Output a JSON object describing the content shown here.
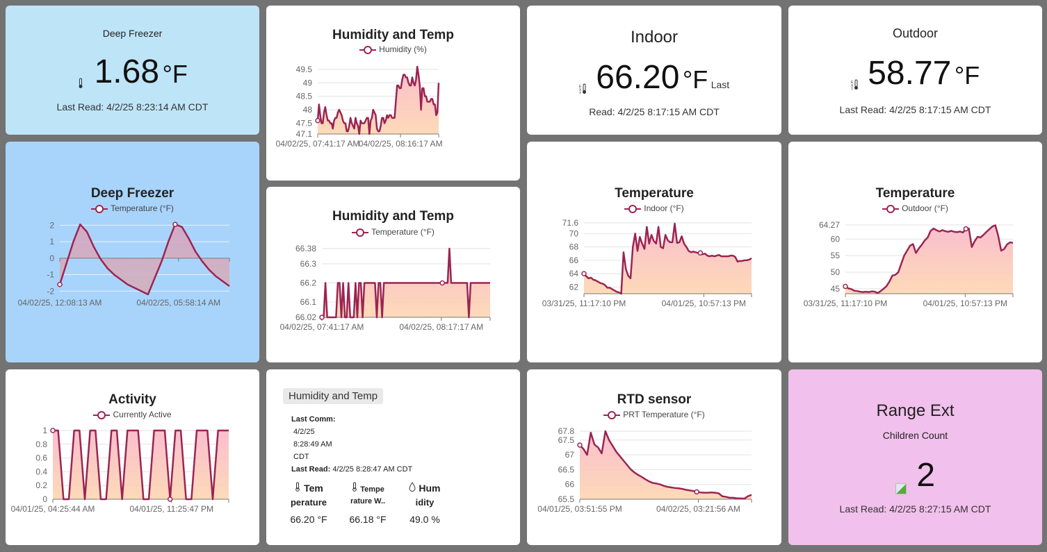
{
  "colors": {
    "background": "#737373",
    "tile": "#ffffff",
    "freezer_value_tile": "#bee4f7",
    "freezer_chart_tile": "#a8d4fb",
    "range_ext_tile": "#f1c0ec",
    "series_line": "#9b2452",
    "fill_top": "#f9b7c8",
    "fill_bottom": "#fdd6b0",
    "grid": "#e2e2e2"
  },
  "tiles": {
    "deep_freezer_value": {
      "title": "Deep Freezer",
      "icon": "thermometer-icon",
      "value": "1.68",
      "unit": "°F",
      "last_read": "Last Read: 4/2/25 8:23:14 AM CDT"
    },
    "indoor_value": {
      "title": "Indoor",
      "icon": "ext-thermometer-icon",
      "value": "66.20",
      "unit": "°F",
      "last_read_prefix": "Last",
      "last_read": "Read: 4/2/25 8:17:15 AM CDT"
    },
    "outdoor_value": {
      "title": "Outdoor",
      "icon": "ext-thermometer-icon",
      "value": "58.77",
      "unit": "°F",
      "last_read": "Last Read: 4/2/25 8:17:15 AM CDT"
    },
    "humidity_temp_info": {
      "button_label": "Humidity and Temp",
      "last_comm_label": "Last Comm:",
      "last_comm_lines": [
        "4/2/25",
        "8:28:49 AM",
        "CDT"
      ],
      "last_read_label": "Last Read:",
      "last_read_value": "4/2/25 8:28:47 AM CDT",
      "columns": [
        {
          "icon": "thermometer-icon",
          "h1": "Tem",
          "h2": "perature",
          "value": "66.20 °F"
        },
        {
          "icon": "thermometer-icon",
          "h1": "Tempe",
          "h2": "rature W..",
          "value": "66.18 °F"
        },
        {
          "icon": "water-drop-icon",
          "h1": "Hum",
          "h2": "idity",
          "value": "49.0 %"
        }
      ]
    },
    "range_ext": {
      "title": "Range Ext",
      "subtitle": "Children Count",
      "icon": "broken-image-icon",
      "value": "2",
      "last_read": "Last Read: 4/2/25 8:27:15 AM CDT"
    }
  },
  "chart_data": [
    {
      "id": "humidity",
      "type": "area",
      "title": "Humidity and Temp",
      "legend": [
        "Humidity (%)"
      ],
      "legend_position": "top",
      "xlabel": "",
      "ylabel": "",
      "ylim": [
        47.1,
        49.6
      ],
      "yticks": [
        47.1,
        47.5,
        48,
        48.5,
        49,
        49.5
      ],
      "xtick_labels": [
        "04/02/25, 07:41:17 AM",
        "04/02/25, 08:16:17 AM"
      ],
      "xtick_positions": [
        0,
        0.685
      ],
      "grid": true,
      "series": [
        {
          "name": "Humidity (%)",
          "values": [
            47.6,
            48.2,
            47.8,
            47.5,
            47.5,
            47.9,
            48.1,
            47.8,
            47.6,
            47.6,
            47.5,
            47.5,
            47.3,
            47.6,
            47.7,
            47.7,
            47.9,
            48.0,
            47.9,
            47.8,
            47.6,
            47.5,
            47.5,
            47.2,
            47.2,
            47.4,
            47.7,
            47.5,
            47.4,
            47.3,
            47.7,
            47.5,
            47.4,
            47.1,
            47.6,
            47.5,
            47.5,
            47.5,
            47.6,
            47.7,
            47.7,
            47.1,
            47.6,
            47.7,
            48.0,
            47.9,
            47.8,
            47.3,
            47.2,
            47.2,
            47.4,
            47.7,
            47.7,
            47.5,
            47.6,
            47.8,
            47.7,
            47.8,
            47.8,
            47.7,
            47.7,
            47.7,
            48.3,
            48.9,
            48.9,
            48.8,
            48.8,
            49.1,
            49.3,
            49.3,
            49.2,
            49.2,
            49.0,
            48.9,
            48.9,
            49.2,
            49.0,
            48.9,
            49.1,
            49.6,
            49.3,
            48.9,
            48.0,
            48.8,
            48.8,
            48.5,
            48.5,
            48.3,
            48.3,
            48.3,
            48.4,
            48.4,
            48.2,
            48.2,
            47.8,
            47.9,
            49.0
          ]
        }
      ],
      "markers": [
        {
          "index": 0
        }
      ]
    },
    {
      "id": "deep_freezer",
      "type": "area",
      "title": "Deep Freezer",
      "legend": [
        "Temperature (°F)"
      ],
      "legend_position": "top",
      "xlabel": "",
      "ylabel": "",
      "ylim": [
        -2.2,
        2.1
      ],
      "yticks": [
        -2,
        -1,
        0,
        1,
        2
      ],
      "xtick_labels": [
        "04/02/25, 12:08:13 AM",
        "04/02/25, 05:58:14 AM"
      ],
      "xtick_positions": [
        0,
        0.7
      ],
      "grid": true,
      "series": [
        {
          "name": "Temperature (°F)",
          "values": [
            -1.6,
            -0.3,
            1.0,
            2.05,
            1.6,
            0.7,
            -0.05,
            -0.6,
            -1.0,
            -1.3,
            -1.6,
            -1.8,
            -2.0,
            -2.2,
            -1.2,
            -0.2,
            1.0,
            2.05,
            1.9,
            1.2,
            0.4,
            -0.2,
            -0.7,
            -1.1,
            -1.4,
            -1.7
          ]
        }
      ],
      "markers": [
        {
          "index": 0
        },
        {
          "index": 17
        }
      ]
    },
    {
      "id": "hum_temp_temperature",
      "type": "area",
      "title": "Humidity and Temp",
      "legend": [
        "Temperature (°F)"
      ],
      "legend_position": "top",
      "xlabel": "",
      "ylabel": "",
      "ylim": [
        66.02,
        66.38
      ],
      "yticks": [
        66.02,
        66.1,
        66.2,
        66.3,
        66.38
      ],
      "xtick_labels": [
        "04/02/25, 07:41:17 AM",
        "04/02/25, 08:17:17 AM"
      ],
      "xtick_positions": [
        0,
        0.71
      ],
      "grid": true,
      "series": [
        {
          "name": "Temperature (°F)",
          "values": [
            66.02,
            66.02,
            66.2,
            66.02,
            66.02,
            66.02,
            66.02,
            66.02,
            66.02,
            66.2,
            66.2,
            66.02,
            66.2,
            66.02,
            66.02,
            66.2,
            66.02,
            66.02,
            66.02,
            66.2,
            66.02,
            66.2,
            66.2,
            66.02,
            66.2,
            66.2,
            66.2,
            66.2,
            66.2,
            66.2,
            66.2,
            66.02,
            66.2,
            66.2,
            66.02,
            66.2,
            66.2,
            66.2,
            66.2,
            66.2,
            66.2,
            66.2,
            66.2,
            66.2,
            66.2,
            66.2,
            66.2,
            66.2,
            66.2,
            66.2,
            66.2,
            66.2,
            66.2,
            66.2,
            66.2,
            66.2,
            66.2,
            66.2,
            66.2,
            66.2,
            66.2,
            66.2,
            66.2,
            66.2,
            66.2,
            66.2,
            66.2,
            66.2,
            66.2,
            66.2,
            66.2,
            66.2,
            66.38,
            66.2,
            66.2,
            66.2,
            66.2,
            66.2,
            66.2,
            66.2,
            66.2,
            66.2,
            66.2,
            66.02,
            66.2,
            66.2,
            66.2,
            66.2,
            66.2,
            66.2,
            66.2,
            66.2,
            66.2,
            66.2,
            66.2,
            66.2
          ]
        }
      ],
      "markers": [
        {
          "index": 0
        },
        {
          "index": 68
        }
      ]
    },
    {
      "id": "indoor_temperature",
      "type": "area",
      "title": "Temperature",
      "legend": [
        "Indoor (°F)"
      ],
      "legend_position": "top",
      "xlabel": "",
      "ylabel": "",
      "ylim": [
        61,
        71.6
      ],
      "yticks": [
        62,
        64,
        66,
        68,
        70,
        71.6
      ],
      "xtick_labels": [
        "03/31/25, 11:17:10 PM",
        "04/01/25, 10:57:13 PM"
      ],
      "xtick_positions": [
        0,
        0.715
      ],
      "grid": true,
      "series": [
        {
          "name": "Indoor (°F)",
          "values": [
            64.0,
            63.6,
            63.3,
            63.4,
            63.1,
            63.0,
            62.8,
            62.6,
            62.5,
            62.3,
            61.9,
            61.9,
            61.7,
            61.5,
            61.3,
            61.2,
            61.0,
            67.2,
            64.7,
            63.7,
            63.3,
            68.0,
            70.0,
            67.4,
            69.5,
            68.5,
            67.7,
            71.0,
            68.5,
            69.8,
            68.9,
            68.5,
            71.0,
            68.0,
            67.8,
            69.8,
            69.0,
            68.7,
            68.7,
            71.5,
            68.6,
            68.7,
            69.6,
            68.5,
            68.0,
            67.4,
            67.2,
            67.3,
            67.2,
            67.1,
            67.1,
            66.9,
            67.0,
            66.7,
            66.6,
            66.7,
            66.6,
            66.7,
            66.8,
            66.6,
            66.6,
            66.6,
            66.6,
            66.7,
            66.7,
            66.5,
            65.8,
            65.9,
            65.9,
            66.0,
            66.0,
            66.1,
            66.3
          ]
        }
      ],
      "markers": [
        {
          "index": 0
        },
        {
          "index": 50
        }
      ]
    },
    {
      "id": "outdoor_temperature",
      "type": "area",
      "title": "Temperature",
      "legend": [
        "Outdoor (°F)"
      ],
      "legend_position": "top",
      "xlabel": "",
      "ylabel": "",
      "ylim": [
        43.5,
        64.27
      ],
      "yticks": [
        45,
        50,
        55,
        60,
        64.27
      ],
      "xtick_labels": [
        "03/31/25, 11:17:10 PM",
        "04/01/25, 10:57:13 PM"
      ],
      "xtick_positions": [
        0,
        0.715
      ],
      "grid": true,
      "series": [
        {
          "name": "Outdoor (°F)",
          "values": [
            45.7,
            45.1,
            44.9,
            44.4,
            44.3,
            44.1,
            44.0,
            44.1,
            44.0,
            44.2,
            44.1,
            43.7,
            44.3,
            45.0,
            45.8,
            47.2,
            49.0,
            49.2,
            50.0,
            52.5,
            55.0,
            56.5,
            58.0,
            58.5,
            55.8,
            57.2,
            58.3,
            59.6,
            60.5,
            62.5,
            63.2,
            62.7,
            62.3,
            62.7,
            62.4,
            62.2,
            62.5,
            62.2,
            62.1,
            62.3,
            62.0,
            63.1,
            63.2,
            57.6,
            59.4,
            60.7,
            60.5,
            61.3,
            62.2,
            63.0,
            63.8,
            64.2,
            61.0,
            56.5,
            57.0,
            58.4,
            59.0,
            58.9
          ]
        }
      ],
      "markers": [
        {
          "index": 0
        },
        {
          "index": 41
        }
      ]
    },
    {
      "id": "activity",
      "type": "area",
      "title": "Activity",
      "legend": [
        "Currently Active"
      ],
      "legend_position": "top",
      "xlabel": "",
      "ylabel": "",
      "ylim": [
        0,
        1
      ],
      "yticks": [
        0,
        0.2,
        0.4,
        0.6,
        0.8,
        1
      ],
      "xtick_labels": [
        "04/01/25, 04:25:44 AM",
        "04/01/25, 11:25:47 PM"
      ],
      "xtick_positions": [
        0,
        0.675
      ],
      "grid": true,
      "series": [
        {
          "name": "Currently Active",
          "values": [
            1,
            1,
            0,
            0,
            1,
            1,
            0,
            1,
            1,
            0,
            0,
            1,
            1,
            0,
            1,
            1,
            1,
            0,
            0,
            1,
            1,
            1,
            0,
            1,
            1,
            0,
            0,
            1,
            1,
            1,
            0,
            1,
            1,
            1
          ]
        }
      ],
      "markers": [
        {
          "index": 0
        },
        {
          "index": 22
        }
      ]
    },
    {
      "id": "rtd_sensor",
      "type": "area",
      "title": "RTD sensor",
      "legend": [
        "PRT Temperature (°F)"
      ],
      "legend_position": "top",
      "xlabel": "",
      "ylabel": "",
      "ylim": [
        65.5,
        67.8
      ],
      "yticks": [
        65.5,
        66,
        66.5,
        67,
        67.5,
        67.8
      ],
      "xtick_labels": [
        "04/01/25, 03:51:55 PM",
        "04/02/25, 03:21:56 AM"
      ],
      "xtick_positions": [
        0,
        0.69
      ],
      "grid": true,
      "series": [
        {
          "name": "PRT Temperature (°F)",
          "values": [
            67.33,
            67.2,
            67.0,
            67.75,
            67.35,
            67.25,
            67.05,
            67.8,
            67.5,
            67.3,
            67.1,
            66.95,
            66.8,
            66.65,
            66.5,
            66.4,
            66.32,
            66.25,
            66.17,
            66.1,
            66.05,
            66.03,
            66.0,
            65.95,
            65.92,
            65.9,
            65.88,
            65.87,
            65.85,
            65.82,
            65.8,
            65.78,
            65.75,
            65.73,
            65.72,
            65.72,
            65.73,
            65.72,
            65.7,
            65.6,
            65.58,
            65.55,
            65.55,
            65.53,
            65.53,
            65.52,
            65.6,
            65.65
          ]
        }
      ],
      "markers": [
        {
          "index": 0
        },
        {
          "index": 32
        }
      ]
    }
  ]
}
